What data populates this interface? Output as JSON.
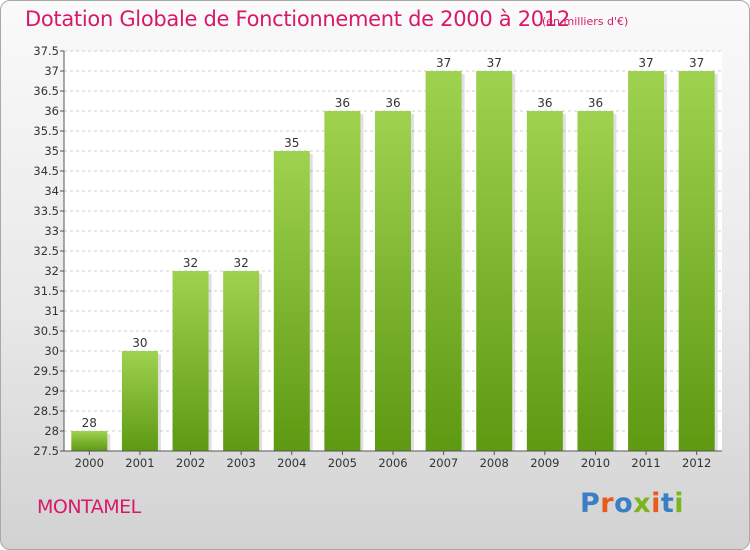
{
  "header": {
    "title": "Dotation Globale de Fonctionnement de 2000 à 2012",
    "unit_note": "(en milliers d'€)"
  },
  "footer": {
    "place": "MONTAMEL",
    "logo_text": "Proxiti"
  },
  "colors": {
    "accent": "#d8196a",
    "bar_top": "#9fd24f",
    "bar_bottom": "#5e9912",
    "grid": "#cfcfcf",
    "logo_letters": [
      "#3a7fc4",
      "#e95a1c",
      "#3a7fc4",
      "#7bb51c",
      "#e95a1c",
      "#3a7fc4",
      "#7bb51c"
    ]
  },
  "chart_data": {
    "type": "bar",
    "title": "Dotation Globale de Fonctionnement de 2000 à 2012",
    "subtitle": "(en milliers d'€)",
    "xlabel": "",
    "ylabel": "",
    "categories": [
      "2000",
      "2001",
      "2002",
      "2003",
      "2004",
      "2005",
      "2006",
      "2007",
      "2008",
      "2009",
      "2010",
      "2011",
      "2012"
    ],
    "values": [
      28,
      30,
      32,
      32,
      35,
      36,
      36,
      37,
      37,
      36,
      36,
      37,
      37
    ],
    "data_labels": [
      "28",
      "30",
      "32",
      "32",
      "35",
      "36",
      "36",
      "37",
      "37",
      "36",
      "36",
      "37",
      "37"
    ],
    "ylim": [
      27.5,
      37.5
    ],
    "yticks": [
      "27.5",
      "28",
      "28.5",
      "29",
      "29.5",
      "30",
      "30.5",
      "31",
      "31.5",
      "32",
      "32.5",
      "33",
      "33.5",
      "34",
      "34.5",
      "35",
      "35.5",
      "36",
      "36.5",
      "37",
      "37.5"
    ],
    "grid": true,
    "legend": "none"
  }
}
